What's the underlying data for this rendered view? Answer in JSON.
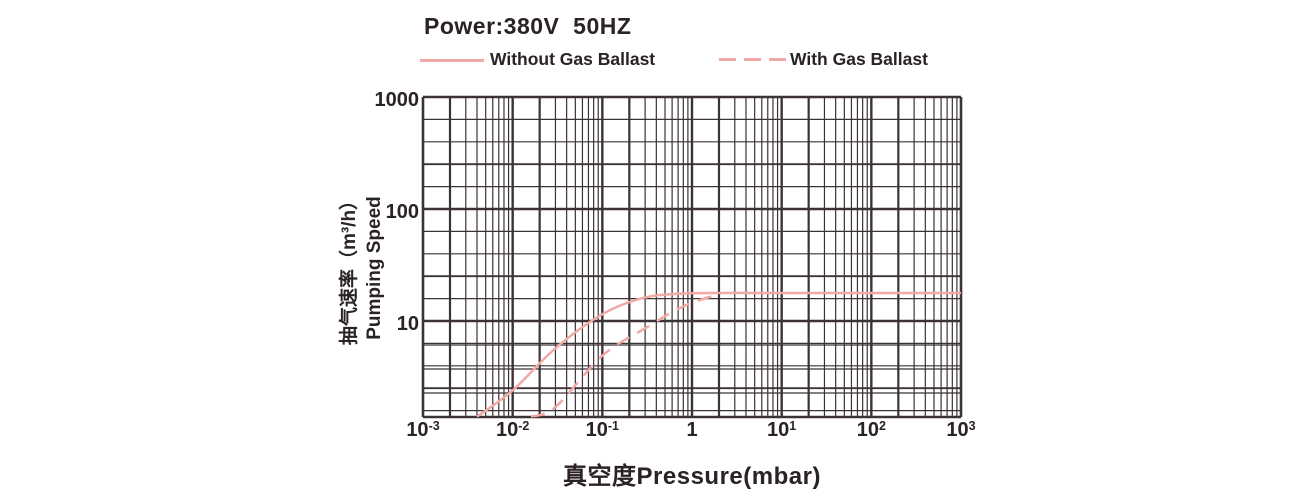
{
  "title": "Power:380V  50HZ",
  "legend": [
    {
      "label": "Without Gas Ballast",
      "style": "solid"
    },
    {
      "label": "With Gas Ballast",
      "style": "dashed"
    }
  ],
  "axes": {
    "x_title": "真空度Pressure(mbar)",
    "y_title_line1": "抽气速率（m³/h）",
    "y_title_line2": "Pumping Speed",
    "x_ticks": [
      {
        "base": "10",
        "exp": "-3"
      },
      {
        "base": "10",
        "exp": "-2"
      },
      {
        "base": "10",
        "exp": "-1"
      },
      {
        "base": "1",
        "exp": ""
      },
      {
        "base": "10",
        "exp": "1"
      },
      {
        "base": "10",
        "exp": "2"
      },
      {
        "base": "10",
        "exp": "3"
      }
    ],
    "y_ticks": [
      "1000",
      "100",
      "10"
    ]
  },
  "chart_data": {
    "type": "line",
    "x_scale": "log",
    "y_scale": "log",
    "xlabel": "真空度Pressure(mbar)",
    "ylabel": "抽气速率（m³/h）Pumping Speed",
    "xlim": [
      0.001,
      1000
    ],
    "ylim": [
      1.5,
      1000
    ],
    "grid": "both",
    "legend_position": "top",
    "max_pumping_speed_m3h": 18,
    "series": [
      {
        "name": "Without Gas Ballast",
        "dash": false,
        "points": [
          [
            0.004,
            1.4
          ],
          [
            0.01,
            2.4
          ],
          [
            0.03,
            5.7
          ],
          [
            0.1,
            11.5
          ],
          [
            0.28,
            16
          ],
          [
            0.7,
            17.5
          ],
          [
            2,
            17.8
          ],
          [
            10,
            17.8
          ],
          [
            100,
            17.8
          ],
          [
            1000,
            17.8
          ]
        ]
      },
      {
        "name": "With Gas Ballast",
        "dash": true,
        "points": [
          [
            0.016,
            1.4
          ],
          [
            0.03,
            1.7
          ],
          [
            0.1,
            4.9
          ],
          [
            0.3,
            8.6
          ],
          [
            0.8,
            13.5
          ],
          [
            1.9,
            17.2
          ]
        ]
      }
    ]
  },
  "colors": {
    "curve": "#f0a9a4",
    "grid": "#3b3335",
    "text": "#2a2224"
  }
}
